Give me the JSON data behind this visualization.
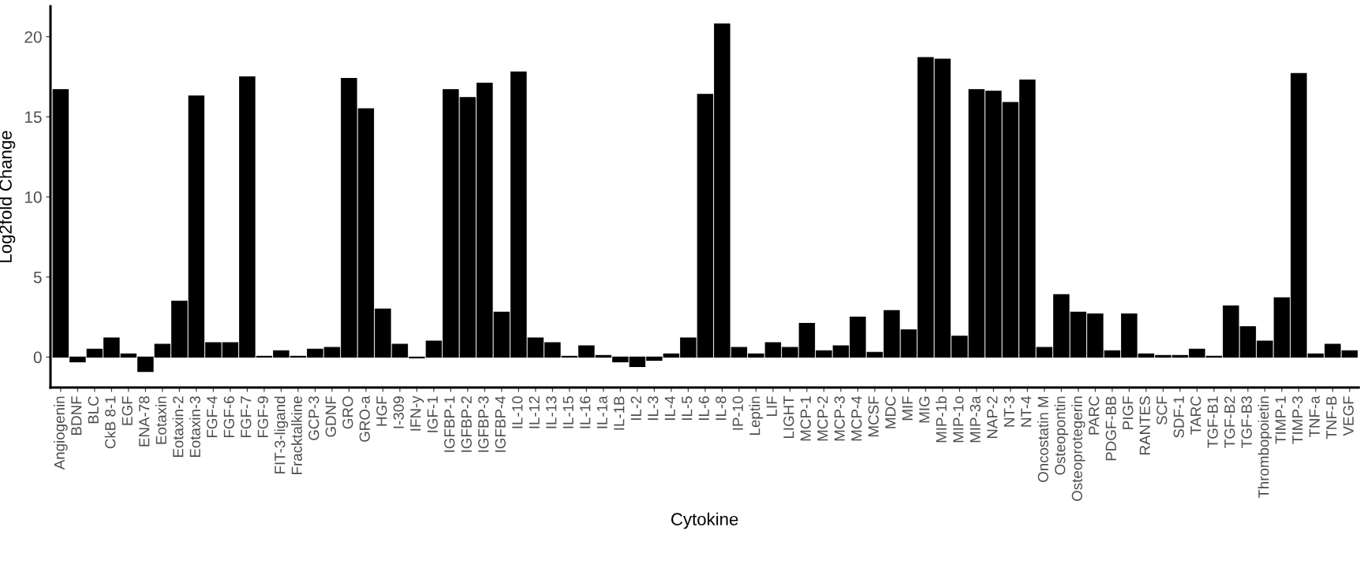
{
  "chart_data": {
    "type": "bar",
    "xlabel": "Cytokine",
    "ylabel": "Log2fold Change",
    "categories": [
      "Angiogenin",
      "BDNF",
      "BLC",
      "CkB 8-1",
      "EGF",
      "ENA-78",
      "Eotaxin",
      "Eotaxin-2",
      "Eotaxin-3",
      "FGF-4",
      "FGF-6",
      "FGF-7",
      "FGF-9",
      "FIT-3-ligand",
      "Fracktalkine",
      "GCP-3",
      "GDNF",
      "GRO",
      "GRO-a",
      "HGF",
      "I-309",
      "IFN-y",
      "IGF-1",
      "IGFBP-1",
      "IGFBP-2",
      "IGFBP-3",
      "IGFBP-4",
      "IL-10",
      "IL-12",
      "IL-13",
      "IL-15",
      "IL-16",
      "IL-1a",
      "IL-1B",
      "IL-2",
      "IL-3",
      "IL-4",
      "IL-5",
      "IL-6",
      "IL-8",
      "IP-10",
      "Leptin",
      "LIF",
      "LIGHT",
      "MCP-1",
      "MCP-2",
      "MCP-3",
      "MCP-4",
      "MCSF",
      "MDC",
      "MIF",
      "MIG",
      "MIP-1b",
      "MIP-1o",
      "MIP-3a",
      "NAP-2",
      "NT-3",
      "NT-4",
      "Oncostatin M",
      "Osteopontin",
      "Osteoprotegerin",
      "PARC",
      "PDGF-BB",
      "PIGF",
      "RANTES",
      "SCF",
      "SDF-1",
      "TARC",
      "TGF-B1",
      "TGF-B2",
      "TGF-B3",
      "Thrombopoietin",
      "TIMP-1",
      "TIMP-3",
      "TNF-a",
      "TNF-B",
      "VEGF"
    ],
    "values": [
      16.7,
      -0.3,
      0.5,
      1.2,
      0.2,
      -0.9,
      0.8,
      3.5,
      16.3,
      0.9,
      0.9,
      17.5,
      0.05,
      0.4,
      0.05,
      0.5,
      0.6,
      17.4,
      15.5,
      3.0,
      0.8,
      -0.05,
      1.0,
      16.7,
      16.2,
      17.1,
      2.8,
      17.8,
      1.2,
      0.9,
      0.05,
      0.7,
      0.1,
      -0.3,
      -0.6,
      -0.2,
      0.2,
      1.2,
      16.4,
      20.8,
      0.6,
      0.2,
      0.9,
      0.6,
      2.1,
      0.4,
      0.7,
      2.5,
      0.3,
      2.9,
      1.7,
      18.7,
      18.6,
      1.3,
      16.7,
      16.6,
      15.9,
      17.3,
      0.6,
      3.9,
      2.8,
      2.7,
      0.4,
      2.7,
      0.2,
      0.1,
      0.1,
      0.5,
      0.05,
      3.2,
      1.9,
      1.0,
      3.7,
      17.7,
      0.2,
      0.8,
      0.4
    ],
    "color": "#000000",
    "ylim": [
      -1.9,
      21.9
    ],
    "yticks": [
      0,
      5,
      10,
      15,
      20
    ],
    "grid": false
  }
}
